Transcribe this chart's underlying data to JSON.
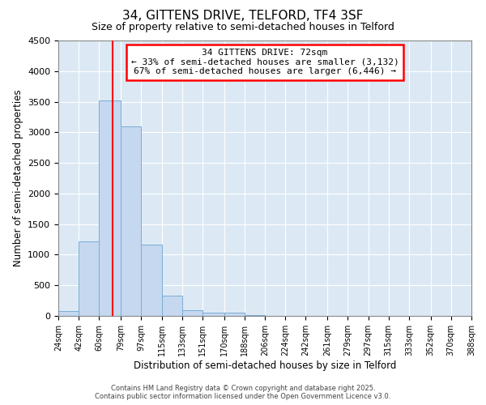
{
  "title": "34, GITTENS DRIVE, TELFORD, TF4 3SF",
  "subtitle": "Size of property relative to semi-detached houses in Telford",
  "xlabel": "Distribution of semi-detached houses by size in Telford",
  "ylabel": "Number of semi-detached properties",
  "bin_edges": [
    24,
    42,
    60,
    79,
    97,
    115,
    133,
    151,
    170,
    188,
    206,
    224,
    242,
    261,
    279,
    297,
    315,
    333,
    352,
    370,
    388
  ],
  "bin_heights": [
    75,
    1220,
    3520,
    3100,
    1160,
    330,
    90,
    55,
    50,
    10,
    5,
    2,
    1,
    1,
    0,
    0,
    0,
    0,
    0,
    0
  ],
  "bar_color": "#c5d8f0",
  "bar_edge_color": "#7aadd4",
  "vline_x": 72,
  "vline_color": "red",
  "ylim": [
    0,
    4500
  ],
  "annotation_title": "34 GITTENS DRIVE: 72sqm",
  "annotation_line1": "← 33% of semi-detached houses are smaller (3,132)",
  "annotation_line2": "67% of semi-detached houses are larger (6,446) →",
  "bg_color": "#dce9f5",
  "footer1": "Contains HM Land Registry data © Crown copyright and database right 2025.",
  "footer2": "Contains public sector information licensed under the Open Government Licence v3.0.",
  "tick_labels": [
    "24sqm",
    "42sqm",
    "60sqm",
    "79sqm",
    "97sqm",
    "115sqm",
    "133sqm",
    "151sqm",
    "170sqm",
    "188sqm",
    "206sqm",
    "224sqm",
    "242sqm",
    "261sqm",
    "279sqm",
    "297sqm",
    "315sqm",
    "333sqm",
    "352sqm",
    "370sqm",
    "388sqm"
  ]
}
